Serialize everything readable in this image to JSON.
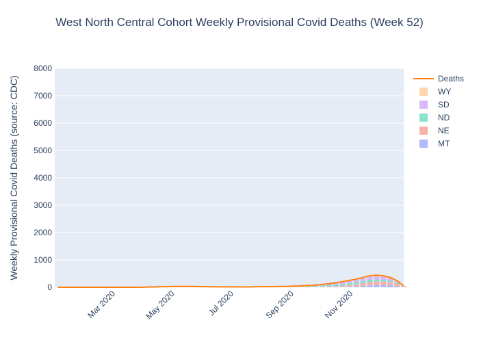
{
  "chart_data": {
    "type": "bar",
    "title": "West North Central Cohort Weekly Provisional Covid Deaths (Week 52)",
    "xlabel": "",
    "ylabel": "Weekly Provisional Covid Deaths (source: CDC)",
    "ylim": [
      0,
      8000
    ],
    "y_ticks": [
      0,
      1000,
      2000,
      3000,
      4000,
      5000,
      6000,
      7000,
      8000
    ],
    "x_ticks": [
      "2020-03-01",
      "2020-05-01",
      "2020-07-01",
      "2020-09-01",
      "2020-11-01"
    ],
    "x_tick_labels": [
      "Mar 2020",
      "May 2020",
      "Jul 2020",
      "Sep 2020",
      "Nov 2020"
    ],
    "x_range": [
      "2020-01-01",
      "2020-12-26"
    ],
    "stacked": true,
    "grid": true,
    "legend_position": "top-right",
    "weeks": [
      "2020-01-04",
      "2020-01-11",
      "2020-01-18",
      "2020-01-25",
      "2020-02-01",
      "2020-02-08",
      "2020-02-15",
      "2020-02-22",
      "2020-02-29",
      "2020-03-07",
      "2020-03-14",
      "2020-03-21",
      "2020-03-28",
      "2020-04-04",
      "2020-04-11",
      "2020-04-18",
      "2020-04-25",
      "2020-05-02",
      "2020-05-09",
      "2020-05-16",
      "2020-05-23",
      "2020-05-30",
      "2020-06-06",
      "2020-06-13",
      "2020-06-20",
      "2020-06-27",
      "2020-07-04",
      "2020-07-11",
      "2020-07-18",
      "2020-07-25",
      "2020-08-01",
      "2020-08-08",
      "2020-08-15",
      "2020-08-22",
      "2020-08-29",
      "2020-09-05",
      "2020-09-12",
      "2020-09-19",
      "2020-09-26",
      "2020-10-03",
      "2020-10-10",
      "2020-10-17",
      "2020-10-24",
      "2020-10-31",
      "2020-11-07",
      "2020-11-14",
      "2020-11-21",
      "2020-11-28",
      "2020-12-05",
      "2020-12-12",
      "2020-12-19",
      "2020-12-26"
    ],
    "series": [
      {
        "name": "MT",
        "color": "#aab4f8",
        "values": [
          0,
          0,
          0,
          0,
          0,
          0,
          0,
          0,
          0,
          0,
          0,
          0,
          0,
          0,
          1,
          2,
          2,
          3,
          2,
          3,
          3,
          2,
          2,
          2,
          2,
          3,
          3,
          2,
          3,
          3,
          2,
          2,
          3,
          3,
          4,
          4,
          5,
          5,
          5,
          7,
          10,
          15,
          22,
          30,
          40,
          55,
          70,
          80,
          85,
          75,
          50,
          10
        ]
      },
      {
        "name": "NE",
        "color": "#f9a99d",
        "values": [
          0,
          0,
          0,
          0,
          0,
          0,
          0,
          0,
          0,
          0,
          0,
          0,
          1,
          3,
          8,
          12,
          14,
          18,
          17,
          18,
          16,
          14,
          12,
          10,
          8,
          8,
          6,
          6,
          5,
          8,
          10,
          9,
          8,
          10,
          9,
          10,
          12,
          14,
          15,
          20,
          22,
          30,
          42,
          55,
          70,
          95,
          120,
          130,
          125,
          115,
          75,
          15
        ]
      },
      {
        "name": "ND",
        "color": "#7ee0c7",
        "values": [
          0,
          0,
          0,
          0,
          0,
          0,
          0,
          0,
          0,
          0,
          0,
          0,
          0,
          0,
          1,
          1,
          2,
          3,
          4,
          5,
          4,
          3,
          3,
          2,
          2,
          2,
          2,
          2,
          2,
          3,
          4,
          5,
          6,
          8,
          10,
          14,
          18,
          22,
          28,
          38,
          45,
          55,
          65,
          70,
          75,
          80,
          85,
          80,
          65,
          50,
          35,
          8
        ]
      },
      {
        "name": "SD",
        "color": "#d7aef8",
        "values": [
          0,
          0,
          0,
          0,
          0,
          0,
          0,
          0,
          0,
          0,
          0,
          0,
          0,
          1,
          2,
          3,
          4,
          5,
          5,
          5,
          4,
          3,
          3,
          3,
          3,
          2,
          2,
          2,
          2,
          3,
          4,
          5,
          6,
          7,
          8,
          10,
          12,
          16,
          22,
          30,
          40,
          50,
          60,
          72,
          85,
          95,
          110,
          115,
          110,
          90,
          60,
          12
        ]
      },
      {
        "name": "WY",
        "color": "#fed0a6",
        "values": [
          0,
          0,
          0,
          0,
          0,
          0,
          0,
          0,
          0,
          0,
          0,
          0,
          0,
          0,
          1,
          1,
          1,
          2,
          2,
          2,
          2,
          2,
          2,
          1,
          1,
          1,
          1,
          1,
          1,
          1,
          2,
          2,
          2,
          3,
          3,
          4,
          5,
          6,
          8,
          10,
          12,
          14,
          18,
          22,
          28,
          32,
          35,
          38,
          35,
          30,
          20,
          5
        ]
      }
    ],
    "line": {
      "name": "Deaths",
      "color": "#ff7f0e",
      "values": [
        0,
        0,
        0,
        0,
        0,
        0,
        0,
        0,
        0,
        0,
        0,
        0,
        1,
        4,
        13,
        19,
        23,
        31,
        30,
        33,
        29,
        24,
        22,
        18,
        16,
        16,
        14,
        13,
        13,
        18,
        22,
        23,
        25,
        31,
        34,
        42,
        52,
        63,
        78,
        105,
        129,
        164,
        207,
        249,
        298,
        357,
        420,
        443,
        420,
        360,
        240,
        50
      ]
    }
  }
}
